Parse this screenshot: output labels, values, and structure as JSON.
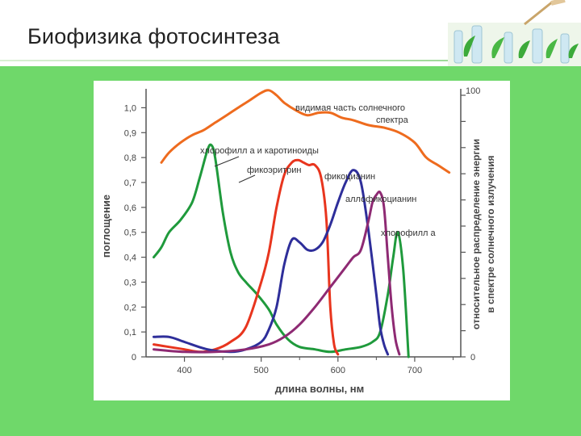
{
  "slide": {
    "title": "Биофизика фотосинтеза"
  },
  "chart_data": {
    "type": "line",
    "xlabel": "длина волны, нм",
    "ylabel_left": "поглощение",
    "ylabel_right_line1": "относительное распределение энергии",
    "ylabel_right_line2": "в спектре солнечного излучения",
    "x_ticks": [
      "400",
      "500",
      "600",
      "700"
    ],
    "y_left_ticks": [
      "0",
      "0,1",
      "0,2",
      "0,3",
      "0,4",
      "0,5",
      "0,6",
      "0,7",
      "0,8",
      "0,9",
      "1,0"
    ],
    "y_right_ticks": [
      "0",
      "100"
    ],
    "xlim": [
      350,
      760
    ],
    "ylim": [
      0,
      1.05
    ],
    "series": [
      {
        "name": "видимая часть солнечного спектра",
        "color": "#ee6b1e",
        "x": [
          370,
          380,
          395,
          410,
          425,
          440,
          455,
          470,
          485,
          500,
          510,
          520,
          530,
          545,
          560,
          575,
          590,
          605,
          620,
          640,
          660,
          680,
          700,
          715,
          730,
          745
        ],
        "y": [
          0.78,
          0.82,
          0.86,
          0.89,
          0.91,
          0.94,
          0.97,
          1.0,
          1.03,
          1.06,
          1.07,
          1.05,
          1.02,
          0.99,
          0.97,
          0.98,
          0.98,
          0.96,
          0.95,
          0.93,
          0.92,
          0.9,
          0.86,
          0.8,
          0.77,
          0.74
        ]
      },
      {
        "name": "хлорофилл а и каротиноиды",
        "color": "#1f9a3c",
        "x": [
          360,
          370,
          380,
          395,
          410,
          420,
          430,
          435,
          440,
          450,
          460,
          470,
          480,
          495,
          510,
          520,
          535,
          550,
          570,
          590,
          610,
          630,
          645,
          655,
          665,
          672,
          678,
          685,
          692
        ],
        "y": [
          0.4,
          0.44,
          0.5,
          0.55,
          0.62,
          0.72,
          0.83,
          0.85,
          0.8,
          0.58,
          0.42,
          0.34,
          0.3,
          0.25,
          0.19,
          0.13,
          0.07,
          0.04,
          0.03,
          0.02,
          0.03,
          0.04,
          0.06,
          0.1,
          0.25,
          0.4,
          0.5,
          0.35,
          0.0
        ]
      },
      {
        "name": "фикоэритрин",
        "color": "#e8351e",
        "x": [
          360,
          380,
          400,
          420,
          440,
          460,
          480,
          500,
          510,
          520,
          530,
          540,
          548,
          555,
          562,
          570,
          578,
          585,
          590,
          595,
          600
        ],
        "y": [
          0.05,
          0.04,
          0.03,
          0.02,
          0.03,
          0.06,
          0.12,
          0.3,
          0.42,
          0.6,
          0.73,
          0.78,
          0.79,
          0.78,
          0.77,
          0.77,
          0.72,
          0.55,
          0.2,
          0.05,
          0.01
        ]
      },
      {
        "name": "фикоцианин",
        "color": "#2e2e9a",
        "x": [
          360,
          380,
          400,
          430,
          460,
          480,
          500,
          510,
          520,
          530,
          540,
          550,
          560,
          570,
          580,
          590,
          600,
          610,
          620,
          630,
          640,
          650,
          655,
          660,
          665
        ],
        "y": [
          0.08,
          0.08,
          0.06,
          0.03,
          0.02,
          0.03,
          0.06,
          0.11,
          0.2,
          0.37,
          0.47,
          0.46,
          0.43,
          0.43,
          0.46,
          0.53,
          0.62,
          0.7,
          0.75,
          0.7,
          0.5,
          0.25,
          0.12,
          0.05,
          0.01
        ]
      },
      {
        "name": "аллофикоцианин",
        "color": "#8e2a73",
        "x": [
          360,
          400,
          440,
          480,
          510,
          530,
          550,
          570,
          590,
          610,
          620,
          630,
          640,
          645,
          650,
          655,
          660,
          665,
          670,
          675,
          680
        ],
        "y": [
          0.03,
          0.02,
          0.02,
          0.03,
          0.05,
          0.08,
          0.13,
          0.2,
          0.28,
          0.36,
          0.4,
          0.43,
          0.55,
          0.62,
          0.65,
          0.66,
          0.6,
          0.4,
          0.2,
          0.07,
          0.01
        ]
      }
    ],
    "grid": false,
    "legend": "inline labels"
  }
}
